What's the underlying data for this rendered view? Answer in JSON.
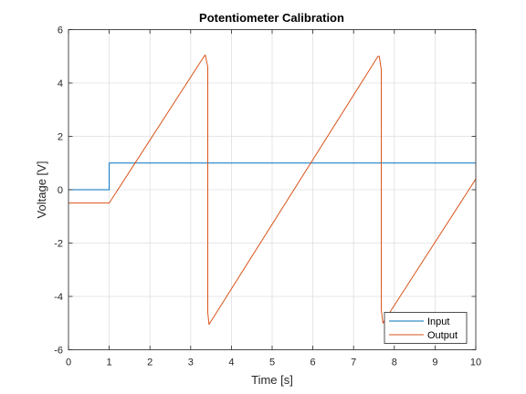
{
  "chart_data": {
    "type": "line",
    "title": "Potentiometer Calibration",
    "xlabel": "Time [s]",
    "ylabel": "Voltage [V]",
    "xlim": [
      0,
      10
    ],
    "ylim": [
      -6,
      6
    ],
    "xticks": [
      0,
      1,
      2,
      3,
      4,
      5,
      6,
      7,
      8,
      9,
      10
    ],
    "yticks": [
      -6,
      -4,
      -2,
      0,
      2,
      4,
      6
    ],
    "grid": true,
    "legend_position": "bottom-right",
    "series": [
      {
        "name": "Input",
        "color": "#0072BD",
        "x": [
          0,
          1,
          1,
          10
        ],
        "y": [
          0,
          0,
          1,
          1
        ]
      },
      {
        "name": "Output",
        "color": "#D95319",
        "x": [
          0,
          1,
          3.33,
          3.36,
          3.42,
          3.42,
          3.45,
          7.6,
          7.63,
          7.68,
          7.68,
          7.72,
          10
        ],
        "y": [
          -0.5,
          -0.5,
          5.0,
          5.05,
          4.6,
          -4.6,
          -5.05,
          5.0,
          5.0,
          4.5,
          -4.5,
          -5.0,
          0.4
        ]
      }
    ]
  }
}
